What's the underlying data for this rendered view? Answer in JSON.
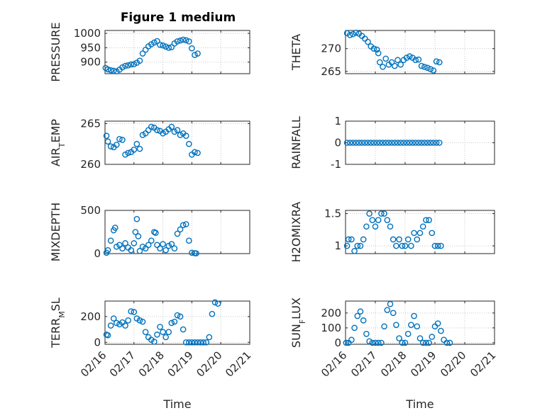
{
  "figure_title": "Figure 1 medium",
  "marker_color": "#0072BD",
  "chart_data": [
    {
      "type": "scatter",
      "id": "pressure",
      "ylabel": "PRESSURE",
      "ylim": [
        860,
        1010
      ],
      "yticks": [
        900,
        950,
        1000
      ],
      "xlim": [
        0,
        5
      ],
      "points": [
        [
          0.02,
          880
        ],
        [
          0.1,
          875
        ],
        [
          0.2,
          872
        ],
        [
          0.3,
          870
        ],
        [
          0.4,
          868
        ],
        [
          0.5,
          874
        ],
        [
          0.6,
          882
        ],
        [
          0.7,
          887
        ],
        [
          0.8,
          889
        ],
        [
          0.9,
          892
        ],
        [
          1.0,
          893
        ],
        [
          1.1,
          898
        ],
        [
          1.2,
          905
        ],
        [
          1.3,
          930
        ],
        [
          1.4,
          943
        ],
        [
          1.5,
          955
        ],
        [
          1.6,
          962
        ],
        [
          1.7,
          968
        ],
        [
          1.8,
          973
        ],
        [
          1.9,
          960
        ],
        [
          2.0,
          958
        ],
        [
          2.1,
          954
        ],
        [
          2.2,
          950
        ],
        [
          2.3,
          952
        ],
        [
          2.4,
          965
        ],
        [
          2.5,
          972
        ],
        [
          2.6,
          975
        ],
        [
          2.7,
          978
        ],
        [
          2.8,
          976
        ],
        [
          2.9,
          972
        ],
        [
          3.0,
          948
        ],
        [
          3.1,
          925
        ],
        [
          3.2,
          930
        ]
      ]
    },
    {
      "type": "scatter",
      "id": "theta",
      "ylabel": "THETA",
      "ylim": [
        264.5,
        274
      ],
      "yticks": [
        265,
        270
      ],
      "xlim": [
        0,
        5
      ],
      "points": [
        [
          0.05,
          273.4
        ],
        [
          0.15,
          273.0
        ],
        [
          0.25,
          273.2
        ],
        [
          0.35,
          273.5
        ],
        [
          0.45,
          273.3
        ],
        [
          0.55,
          272.8
        ],
        [
          0.65,
          272.2
        ],
        [
          0.75,
          271.5
        ],
        [
          0.85,
          270.5
        ],
        [
          0.95,
          270.0
        ],
        [
          1.05,
          269.8
        ],
        [
          1.1,
          269.0
        ],
        [
          1.15,
          267.0
        ],
        [
          1.25,
          266.0
        ],
        [
          1.35,
          267.8
        ],
        [
          1.45,
          266.5
        ],
        [
          1.55,
          267.0
        ],
        [
          1.65,
          266.2
        ],
        [
          1.75,
          267.5
        ],
        [
          1.85,
          266.5
        ],
        [
          1.95,
          267.5
        ],
        [
          2.05,
          268.0
        ],
        [
          2.15,
          268.3
        ],
        [
          2.25,
          268.0
        ],
        [
          2.35,
          267.5
        ],
        [
          2.45,
          267.6
        ],
        [
          2.55,
          266.2
        ],
        [
          2.65,
          266.0
        ],
        [
          2.75,
          265.8
        ],
        [
          2.85,
          265.5
        ],
        [
          2.95,
          265.2
        ],
        [
          3.05,
          267.2
        ],
        [
          3.15,
          267.0
        ]
      ]
    },
    {
      "type": "scatter",
      "id": "airtemp",
      "ylabel": "AIR",
      "ylabel_sub": "T",
      "ylabel_suffix": "EMP",
      "ylim": [
        260,
        265.3
      ],
      "yticks": [
        260,
        265
      ],
      "xlim": [
        0,
        5
      ],
      "points": [
        [
          0.05,
          263.5
        ],
        [
          0.1,
          262.8
        ],
        [
          0.2,
          262.2
        ],
        [
          0.3,
          262.1
        ],
        [
          0.4,
          262.4
        ],
        [
          0.5,
          263.1
        ],
        [
          0.6,
          263.0
        ],
        [
          0.7,
          261.2
        ],
        [
          0.8,
          261.4
        ],
        [
          0.9,
          261.5
        ],
        [
          1.0,
          261.8
        ],
        [
          1.1,
          262.5
        ],
        [
          1.2,
          261.9
        ],
        [
          1.3,
          263.6
        ],
        [
          1.4,
          263.8
        ],
        [
          1.5,
          264.2
        ],
        [
          1.6,
          264.6
        ],
        [
          1.7,
          264.5
        ],
        [
          1.8,
          264.2
        ],
        [
          1.9,
          264.1
        ],
        [
          2.0,
          263.8
        ],
        [
          2.1,
          264.0
        ],
        [
          2.2,
          264.3
        ],
        [
          2.3,
          264.6
        ],
        [
          2.4,
          264.0
        ],
        [
          2.5,
          264.2
        ],
        [
          2.6,
          263.6
        ],
        [
          2.7,
          263.8
        ],
        [
          2.8,
          263.5
        ],
        [
          2.9,
          262.5
        ],
        [
          3.0,
          261.2
        ],
        [
          3.1,
          261.5
        ],
        [
          3.2,
          261.4
        ]
      ]
    },
    {
      "type": "scatter",
      "id": "rainfall",
      "ylabel": "RAINFALL",
      "ylim": [
        -1,
        1
      ],
      "yticks": [
        -1,
        0,
        1
      ],
      "xlim": [
        0,
        5
      ],
      "points": [
        [
          0.05,
          0
        ],
        [
          0.15,
          0
        ],
        [
          0.25,
          0
        ],
        [
          0.35,
          0
        ],
        [
          0.45,
          0
        ],
        [
          0.55,
          0
        ],
        [
          0.65,
          0
        ],
        [
          0.75,
          0
        ],
        [
          0.85,
          0
        ],
        [
          0.95,
          0
        ],
        [
          1.05,
          0
        ],
        [
          1.15,
          0
        ],
        [
          1.25,
          0
        ],
        [
          1.35,
          0
        ],
        [
          1.45,
          0
        ],
        [
          1.55,
          0
        ],
        [
          1.65,
          0
        ],
        [
          1.75,
          0
        ],
        [
          1.85,
          0
        ],
        [
          1.95,
          0
        ],
        [
          2.05,
          0
        ],
        [
          2.15,
          0
        ],
        [
          2.25,
          0
        ],
        [
          2.35,
          0
        ],
        [
          2.45,
          0
        ],
        [
          2.55,
          0
        ],
        [
          2.65,
          0
        ],
        [
          2.75,
          0
        ],
        [
          2.85,
          0
        ],
        [
          2.95,
          0
        ],
        [
          3.05,
          0
        ],
        [
          3.15,
          0
        ]
      ]
    },
    {
      "type": "scatter",
      "id": "mixdepth",
      "ylabel": "MIXDEPTH",
      "ylim": [
        0,
        500
      ],
      "yticks": [
        0,
        500
      ],
      "xlim": [
        0,
        5
      ],
      "points": [
        [
          0.05,
          10
        ],
        [
          0.1,
          40
        ],
        [
          0.2,
          150
        ],
        [
          0.3,
          270
        ],
        [
          0.35,
          300
        ],
        [
          0.4,
          80
        ],
        [
          0.5,
          100
        ],
        [
          0.6,
          60
        ],
        [
          0.7,
          120
        ],
        [
          0.8,
          70
        ],
        [
          0.9,
          40
        ],
        [
          1.0,
          120
        ],
        [
          1.05,
          250
        ],
        [
          1.1,
          400
        ],
        [
          1.15,
          200
        ],
        [
          1.2,
          30
        ],
        [
          1.3,
          80
        ],
        [
          1.4,
          60
        ],
        [
          1.5,
          100
        ],
        [
          1.6,
          150
        ],
        [
          1.7,
          250
        ],
        [
          1.75,
          240
        ],
        [
          1.8,
          100
        ],
        [
          1.9,
          60
        ],
        [
          2.0,
          110
        ],
        [
          2.1,
          40
        ],
        [
          2.2,
          90
        ],
        [
          2.3,
          110
        ],
        [
          2.4,
          60
        ],
        [
          2.5,
          230
        ],
        [
          2.6,
          280
        ],
        [
          2.7,
          330
        ],
        [
          2.8,
          340
        ],
        [
          2.9,
          150
        ],
        [
          3.0,
          10
        ],
        [
          3.1,
          5
        ],
        [
          3.15,
          3
        ]
      ]
    },
    {
      "type": "scatter",
      "id": "h2omixra",
      "ylabel": "H2OMIXRA",
      "ylim": [
        0.88,
        1.55
      ],
      "yticks": [
        1,
        1.5
      ],
      "xlim": [
        0,
        5
      ],
      "points": [
        [
          0.05,
          1.0
        ],
        [
          0.1,
          1.1
        ],
        [
          0.2,
          1.1
        ],
        [
          0.3,
          0.92
        ],
        [
          0.4,
          1.0
        ],
        [
          0.5,
          1.0
        ],
        [
          0.6,
          1.1
        ],
        [
          0.7,
          1.3
        ],
        [
          0.8,
          1.5
        ],
        [
          0.9,
          1.4
        ],
        [
          1.0,
          1.3
        ],
        [
          1.1,
          1.4
        ],
        [
          1.2,
          1.5
        ],
        [
          1.3,
          1.5
        ],
        [
          1.4,
          1.4
        ],
        [
          1.5,
          1.3
        ],
        [
          1.6,
          1.1
        ],
        [
          1.7,
          1.0
        ],
        [
          1.8,
          1.1
        ],
        [
          1.9,
          1.0
        ],
        [
          2.0,
          1.0
        ],
        [
          2.1,
          1.1
        ],
        [
          2.2,
          1.0
        ],
        [
          2.3,
          1.2
        ],
        [
          2.4,
          1.1
        ],
        [
          2.5,
          1.2
        ],
        [
          2.6,
          1.3
        ],
        [
          2.7,
          1.4
        ],
        [
          2.8,
          1.4
        ],
        [
          2.9,
          1.2
        ],
        [
          3.0,
          1.0
        ],
        [
          3.1,
          1.0
        ],
        [
          3.2,
          1.0
        ]
      ]
    },
    {
      "type": "scatter",
      "id": "terrmsl",
      "ylabel": "TERR",
      "ylabel_sub": "M",
      "ylabel_suffix": "SL",
      "ylim": [
        -15,
        320
      ],
      "yticks": [
        0,
        200
      ],
      "xlim": [
        0,
        5
      ],
      "xticklabels": [
        "02/16",
        "02/17",
        "02/18",
        "02/19",
        "02/20",
        "02/21"
      ],
      "xlabel": "Time",
      "points": [
        [
          0.05,
          60
        ],
        [
          0.1,
          55
        ],
        [
          0.2,
          130
        ],
        [
          0.3,
          185
        ],
        [
          0.4,
          150
        ],
        [
          0.5,
          140
        ],
        [
          0.6,
          155
        ],
        [
          0.7,
          130
        ],
        [
          0.8,
          170
        ],
        [
          0.9,
          240
        ],
        [
          1.0,
          235
        ],
        [
          1.1,
          185
        ],
        [
          1.2,
          170
        ],
        [
          1.3,
          160
        ],
        [
          1.4,
          80
        ],
        [
          1.5,
          40
        ],
        [
          1.6,
          20
        ],
        [
          1.7,
          5
        ],
        [
          1.8,
          60
        ],
        [
          1.9,
          120
        ],
        [
          2.0,
          80
        ],
        [
          2.1,
          40
        ],
        [
          2.2,
          80
        ],
        [
          2.3,
          150
        ],
        [
          2.4,
          160
        ],
        [
          2.5,
          210
        ],
        [
          2.6,
          200
        ],
        [
          2.7,
          100
        ],
        [
          2.8,
          0
        ],
        [
          2.9,
          0
        ],
        [
          3.0,
          0
        ],
        [
          3.1,
          0
        ],
        [
          3.2,
          0
        ],
        [
          3.3,
          0
        ],
        [
          3.4,
          0
        ],
        [
          3.5,
          0
        ],
        [
          3.6,
          40
        ],
        [
          3.7,
          220
        ],
        [
          3.8,
          310
        ],
        [
          3.9,
          300
        ]
      ]
    },
    {
      "type": "scatter",
      "id": "sunflux",
      "ylabel": "SUN",
      "ylabel_sub": "F",
      "ylabel_suffix": "LUX",
      "ylim": [
        -10,
        280
      ],
      "yticks": [
        0,
        100,
        200
      ],
      "xlim": [
        0,
        5
      ],
      "xticklabels": [
        "02/16",
        "02/17",
        "02/18",
        "02/19",
        "02/20",
        "02/21"
      ],
      "xlabel": "Time",
      "points": [
        [
          0.02,
          0
        ],
        [
          0.1,
          0
        ],
        [
          0.2,
          20
        ],
        [
          0.3,
          100
        ],
        [
          0.4,
          180
        ],
        [
          0.5,
          210
        ],
        [
          0.6,
          150
        ],
        [
          0.7,
          60
        ],
        [
          0.8,
          10
        ],
        [
          0.9,
          0
        ],
        [
          1.0,
          0
        ],
        [
          1.1,
          0
        ],
        [
          1.2,
          0
        ],
        [
          1.3,
          110
        ],
        [
          1.4,
          220
        ],
        [
          1.5,
          260
        ],
        [
          1.6,
          200
        ],
        [
          1.7,
          120
        ],
        [
          1.8,
          30
        ],
        [
          1.9,
          0
        ],
        [
          2.0,
          0
        ],
        [
          2.1,
          60
        ],
        [
          2.2,
          120
        ],
        [
          2.3,
          180
        ],
        [
          2.4,
          110
        ],
        [
          2.5,
          30
        ],
        [
          2.6,
          0
        ],
        [
          2.7,
          0
        ],
        [
          2.8,
          0
        ],
        [
          2.9,
          40
        ],
        [
          3.0,
          110
        ],
        [
          3.1,
          130
        ],
        [
          3.2,
          80
        ],
        [
          3.3,
          20
        ],
        [
          3.4,
          0
        ],
        [
          3.5,
          0
        ]
      ]
    }
  ]
}
